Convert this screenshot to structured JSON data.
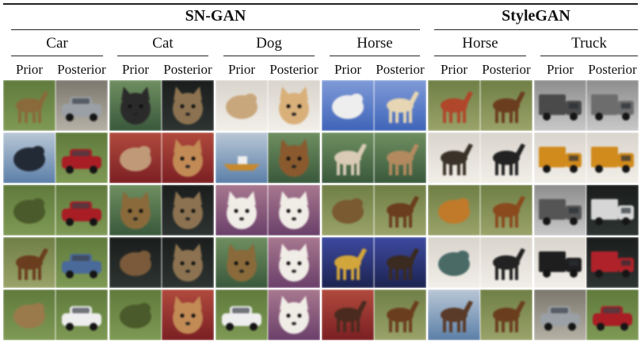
{
  "groups": [
    {
      "model": "SN-GAN",
      "categories": [
        {
          "name": "Car"
        },
        {
          "name": "Cat"
        },
        {
          "name": "Dog"
        },
        {
          "name": "Horse"
        }
      ]
    },
    {
      "model": "StyleGAN",
      "categories": [
        {
          "name": "Horse"
        },
        {
          "name": "Truck"
        }
      ]
    }
  ],
  "column_labels": {
    "prior": "Prior",
    "posterior": "Posterior"
  },
  "rows": 5,
  "cell_images": [
    [
      "deer-grass",
      "car-gray",
      "dog-dark",
      "cat-tabby",
      "animal-white",
      "dog-cream",
      "bird-sky",
      "horse-white",
      "horse-red-field",
      "horse-brown",
      "truck-blur",
      "truck-silver"
    ],
    [
      "bird-dark",
      "car-red",
      "deer-lying",
      "cat-orange",
      "boat-water",
      "dog-brown",
      "horse-forest",
      "horse-tan",
      "horse-dark-field",
      "horse-black",
      "truck-yellow",
      "truck-yellow"
    ],
    [
      "frog-green",
      "car-red",
      "cat-brown",
      "cat-tabby",
      "dog-white",
      "dog-white",
      "bird-field",
      "horse-brown",
      "animal-orange",
      "horse-chestnut",
      "truck-gray",
      "truck-white"
    ],
    [
      "horse-brown",
      "car-blue",
      "frog-brown",
      "cat-tabby",
      "cat-brown",
      "dog-white",
      "horse-yellow",
      "horse-dark",
      "animal-teal",
      "horse-black",
      "truck-black",
      "truck-red"
    ],
    [
      "bird-brown",
      "car-white",
      "frog-green",
      "cat-orange",
      "car-white",
      "dog-white",
      "horse-deer",
      "horse-brown",
      "horse-shore",
      "horse-brown",
      "car-gray",
      "car-red"
    ]
  ]
}
